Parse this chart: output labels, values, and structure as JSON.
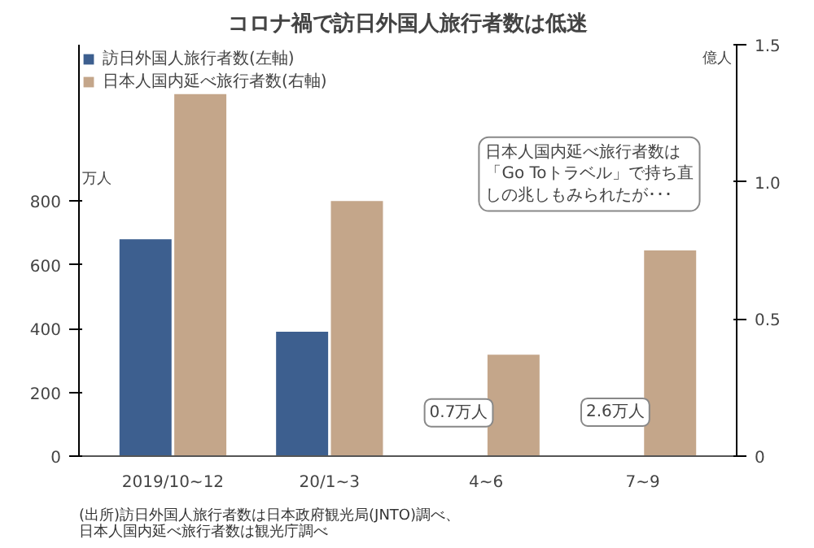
{
  "chart_data": {
    "type": "bar",
    "title": "コロナ禍で訪日外国人旅行者数は低迷",
    "categories": [
      "2019/10~12",
      "20/1~3",
      "4~6",
      "7~9"
    ],
    "series": [
      {
        "name": "訪日外国人旅行者数(左軸)",
        "color": "#3d5f8f",
        "values": [
          680,
          390,
          0.7,
          2.6
        ],
        "value_labels": [
          null,
          null,
          "0.7万人",
          "2.6万人"
        ]
      },
      {
        "name": "日本人国内延べ旅行者数(右軸)",
        "color": "#c4a68a",
        "values": [
          1.32,
          0.93,
          0.37,
          0.75
        ],
        "axis": "y2"
      }
    ],
    "ylabel": "万人",
    "y2label": "億人",
    "ylim": [
      0,
      1290
    ],
    "yticks": [
      0,
      200,
      400,
      600,
      800
    ],
    "y2lim": [
      0,
      1.5
    ],
    "y2ticks": [
      0,
      0.5,
      {
        "value": 1,
        "label": "1.0"
      },
      1.5
    ],
    "legend": "top left",
    "grid": false,
    "annotations": [
      "日本人国内延べ旅行者数は「Go Toトラベル」で持ち直しの兆しもみられたが･･･",
      "(出所)訪日外国人旅行者数は日本政府観光局(JNTO)調べ、日本人国内延べ旅行者数は観光庁調べ"
    ]
  }
}
